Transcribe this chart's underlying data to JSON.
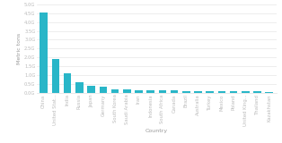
{
  "categories": [
    "China",
    "United Stat...",
    "India",
    "Russia",
    "Japan",
    "Germany",
    "South Korea",
    "Saudi Arabia",
    "Iran",
    "Indonesia",
    "South Africa",
    "Canada",
    "Brazil",
    "Australia",
    "Turkey",
    "Mexico",
    "Poland",
    "United King...",
    "Thailand",
    "Kazakhstan"
  ],
  "values": [
    4.53,
    1.92,
    1.1,
    0.62,
    0.42,
    0.34,
    0.21,
    0.18,
    0.16,
    0.15,
    0.13,
    0.13,
    0.12,
    0.11,
    0.1,
    0.09,
    0.09,
    0.08,
    0.08,
    0.07
  ],
  "bar_color": "#29b6c8",
  "background_color": "#ffffff",
  "ylabel": "Metric tons",
  "xlabel": "Country",
  "ylim": [
    0,
    5.0
  ],
  "yticks": [
    0.0,
    0.5,
    1.0,
    1.5,
    2.0,
    2.5,
    3.0,
    3.5,
    4.0,
    4.5,
    5.0
  ],
  "ytick_labels": [
    "0.0G",
    "0.5G",
    "1.0G",
    "1.5G",
    "2.0G",
    "2.5G",
    "3.0G",
    "3.5G",
    "4.0G",
    "4.5G",
    "5.0G"
  ],
  "grid_color": "#e0e0e0",
  "tick_color": "#bbbbbb",
  "label_color": "#999999",
  "axis_fontsize": 4.5,
  "tick_fontsize": 3.8,
  "bar_width": 0.65
}
